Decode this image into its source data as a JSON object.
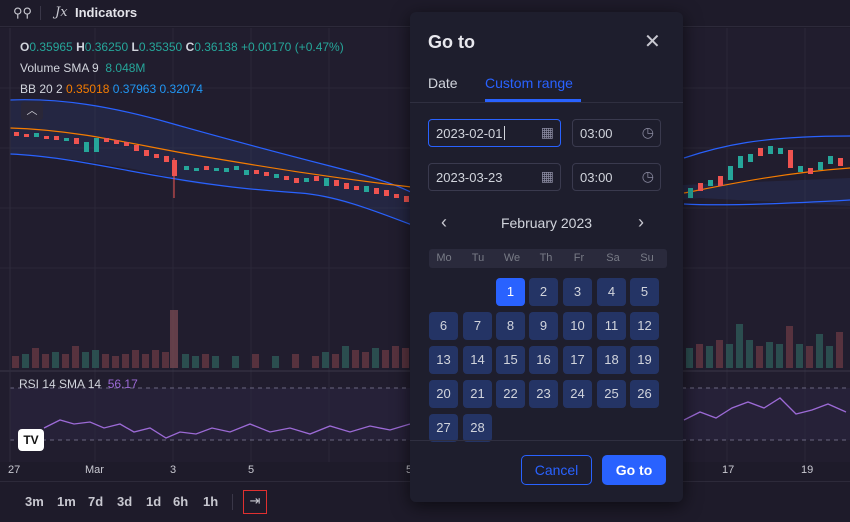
{
  "toolbar": {
    "indicators_label": "Indicators",
    "fx_symbol": "Jx",
    "compare_icon": "compare-icon"
  },
  "legend": {
    "ohlc": [
      {
        "key": "O",
        "value": "0.35965"
      },
      {
        "key": "H",
        "value": "0.36250"
      },
      {
        "key": "L",
        "value": "0.35350"
      },
      {
        "key": "C",
        "value": "0.36138"
      }
    ],
    "change": "+0.00170 (+0.47%)",
    "volume_label": "Volume SMA 9",
    "volume_value": "8.048M",
    "bb_label": "BB 20 2",
    "bb_mid": "0.35018",
    "bb_upper": "0.37963",
    "bb_lower": "0.32074",
    "collapse_icon": "chevron-up-icon"
  },
  "rsi": {
    "label": "RSI 14 SMA 14",
    "value": "56.17"
  },
  "x_axis": [
    "27",
    "Mar",
    "3",
    "5",
    "5",
    "17",
    "19"
  ],
  "ranges": [
    "3m",
    "1m",
    "7d",
    "3d",
    "1d",
    "6h",
    "1h"
  ],
  "goto_icon": "calendar-goto-icon",
  "logo_text": "TV",
  "dialog": {
    "title": "Go to",
    "close_icon": "close-icon",
    "tabs": [
      "Date",
      "Custom range"
    ],
    "active_tab": "Custom range",
    "start_date": "2023-02-01",
    "start_time": "03:00",
    "end_date": "2023-03-23",
    "end_time": "03:00",
    "calendar": {
      "month": "February 2023",
      "weekdays": [
        "Mo",
        "Tu",
        "We",
        "Th",
        "Fr",
        "Sa",
        "Su"
      ],
      "selected_day": "1",
      "weeks": [
        [
          "",
          "",
          "1",
          "2",
          "3",
          "4",
          "5"
        ],
        [
          "6",
          "7",
          "8",
          "9",
          "10",
          "11",
          "12"
        ],
        [
          "13",
          "14",
          "15",
          "16",
          "17",
          "18",
          "19"
        ],
        [
          "20",
          "21",
          "22",
          "23",
          "24",
          "25",
          "26"
        ],
        [
          "27",
          "28",
          "",
          "",
          "",
          "",
          ""
        ]
      ]
    },
    "cancel_label": "Cancel",
    "go_label": "Go to"
  },
  "colors": {
    "accent": "#2962ff",
    "up": "#26a69a",
    "down": "#ef5350",
    "bb_mid": "#f57c00",
    "bb_band": "#2196f3",
    "rsi": "#9c6ad6",
    "highlight": "#e03030"
  }
}
